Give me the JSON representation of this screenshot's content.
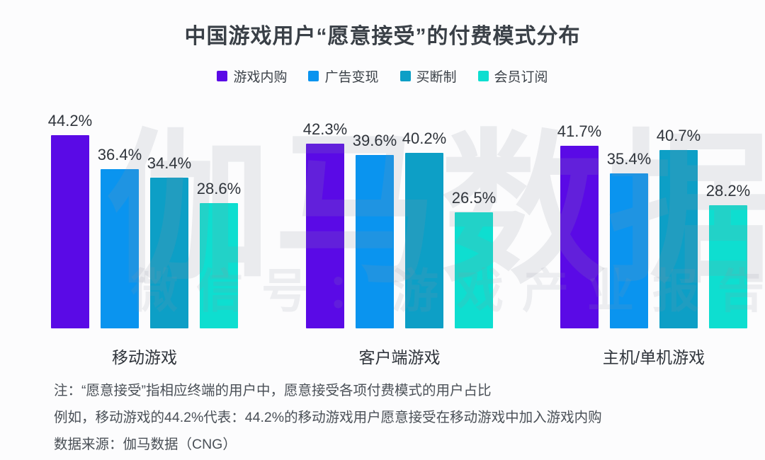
{
  "title": "中国游戏用户“愿意接受”的付费模式分布",
  "chart_data": {
    "type": "bar",
    "categories": [
      "移动游戏",
      "客户端游戏",
      "主机/单机游戏"
    ],
    "series": [
      {
        "name": "游戏内购",
        "color": "#5A0AE6",
        "values": [
          44.2,
          42.3,
          41.7
        ]
      },
      {
        "name": "广告变现",
        "color": "#0A94EF",
        "values": [
          36.4,
          39.6,
          35.4
        ]
      },
      {
        "name": "买断制",
        "color": "#0D9FC6",
        "values": [
          34.4,
          40.2,
          40.7
        ]
      },
      {
        "name": "会员订阅",
        "color": "#0EDED0",
        "values": [
          28.6,
          26.5,
          28.2
        ]
      }
    ],
    "value_suffix": "%",
    "title": "中国游戏用户“愿意接受”的付费模式分布",
    "xlabel": "",
    "ylabel": "",
    "ylim": [
      0,
      48
    ],
    "grid": false,
    "legend_position": "top",
    "value_labels": "above-bars"
  },
  "notes": [
    "注：“愿意接受”指相应终端的用户中，愿意接受各项付费模式的用户占比",
    "例如，移动游戏的44.2%代表：44.2%的移动游戏用户愿意接受在移动游戏中加入游戏内购",
    "数据来源：伽马数据（CNG）"
  ],
  "watermark": {
    "line1": "伽马数据",
    "line2": "微信号：游戏产业报告"
  }
}
